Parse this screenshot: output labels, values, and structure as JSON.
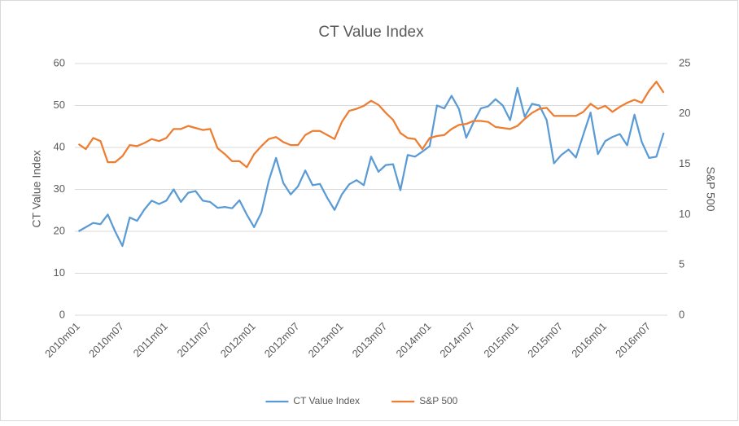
{
  "chart_data": {
    "type": "line",
    "title": "CT Value Index",
    "ylabel": "CT Value Index",
    "y2label": "S&P 500",
    "categories": [
      "2010m01",
      null,
      null,
      null,
      null,
      null,
      "2010m07",
      null,
      null,
      null,
      null,
      null,
      "2011m01",
      null,
      null,
      null,
      null,
      null,
      "2011m07",
      null,
      null,
      null,
      null,
      null,
      "2012m01",
      null,
      null,
      null,
      null,
      null,
      "2012m07",
      null,
      null,
      null,
      null,
      null,
      "2013m01",
      null,
      null,
      null,
      null,
      null,
      "2013m07",
      null,
      null,
      null,
      null,
      null,
      "2014m01",
      null,
      null,
      null,
      null,
      null,
      "2014m07",
      null,
      null,
      null,
      null,
      null,
      "2015m01",
      null,
      null,
      null,
      null,
      null,
      "2015m07",
      null,
      null,
      null,
      null,
      null,
      "2016m01",
      null,
      null,
      null,
      null,
      null,
      "2016m07",
      null,
      null
    ],
    "series": [
      {
        "name": "CT Value Index",
        "color": "#5b9bd5",
        "values": [
          20,
          21,
          22,
          21.7,
          24,
          20,
          16.5,
          23.3,
          22.5,
          25.2,
          27.3,
          26.5,
          27.3,
          30,
          27,
          29.2,
          29.6,
          27.3,
          27,
          25.6,
          25.8,
          25.5,
          27.4,
          24,
          21,
          24.5,
          32,
          37.5,
          31.5,
          28.8,
          30.7,
          34.5,
          31,
          31.3,
          28,
          25.1,
          28.8,
          31.2,
          32.2,
          31,
          37.8,
          34.2,
          35.8,
          36,
          29.8,
          38.2,
          37.8,
          39,
          40.3,
          50,
          49.3,
          52.3,
          49.2,
          42.3,
          46,
          49.3,
          49.8,
          51.5,
          50,
          46.5,
          54.2,
          47.3,
          50.4,
          50,
          46.5,
          36.2,
          38.2,
          39.5,
          37.6,
          43,
          48.3,
          38.4,
          41.5,
          42.5,
          43.2,
          40.5,
          47.8,
          41.3,
          37.5,
          37.8,
          43.5
        ]
      },
      {
        "name": "S&P 500",
        "color": "#ed7d31",
        "axis": "y2",
        "values": [
          17,
          16.5,
          17.6,
          17.3,
          15.2,
          15.2,
          15.8,
          16.9,
          16.8,
          17.1,
          17.5,
          17.3,
          17.6,
          18.5,
          18.5,
          18.8,
          18.6,
          18.4,
          18.5,
          16.6,
          16,
          15.3,
          15.3,
          14.7,
          16,
          16.8,
          17.5,
          17.7,
          17.2,
          16.9,
          16.9,
          17.9,
          18.3,
          18.3,
          17.9,
          17.5,
          19.2,
          20.3,
          20.5,
          20.8,
          21.3,
          20.9,
          20.1,
          19.4,
          18.1,
          17.6,
          17.5,
          16.5,
          17.6,
          17.8,
          17.9,
          18.5,
          18.9,
          19,
          19.3,
          19.3,
          19.2,
          18.7,
          18.6,
          18.5,
          18.8,
          19.5,
          20.1,
          20.5,
          20.6,
          19.8,
          19.8,
          19.8,
          19.8,
          20.2,
          21,
          20.5,
          20.8,
          20.2,
          20.7,
          21.1,
          21.4,
          21.1,
          22.3,
          23.2,
          22.1
        ]
      }
    ],
    "ylim": [
      0,
      60
    ],
    "yticks": [
      0,
      10,
      20,
      30,
      40,
      50,
      60
    ],
    "y2lim": [
      0,
      25
    ],
    "y2ticks": [
      0,
      5,
      10,
      15,
      20,
      25
    ],
    "grid": true,
    "legend": "bottom"
  }
}
